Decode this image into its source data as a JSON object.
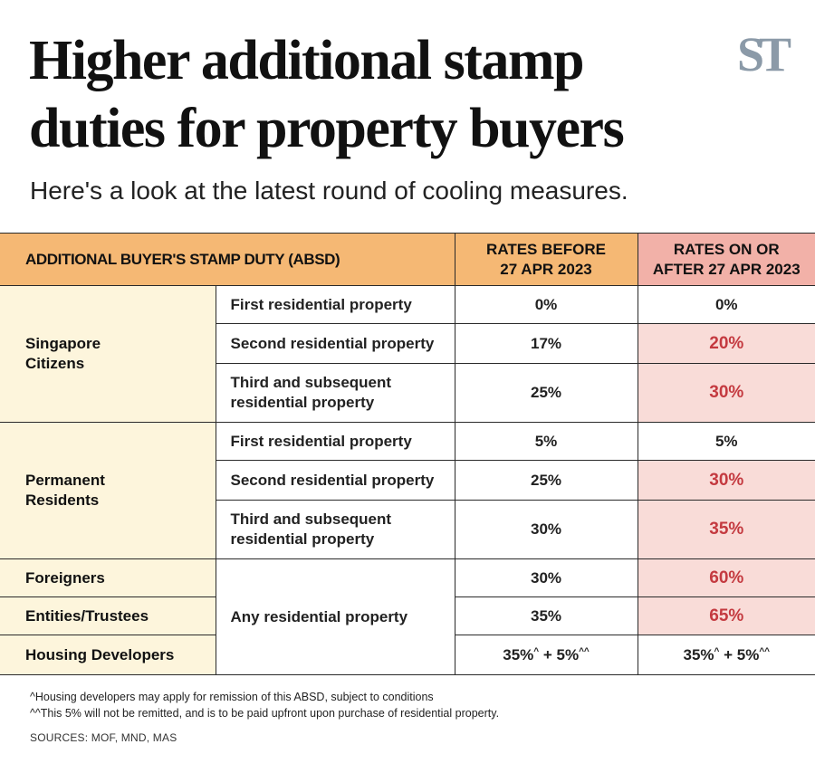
{
  "header": {
    "title": "Higher additional stamp duties for property buyers",
    "subtitle": "Here's a look at the latest round of cooling measures.",
    "logo_text": "ST",
    "logo_color": "#8b9aa8"
  },
  "table": {
    "headers": {
      "main": "ADDITIONAL BUYER'S STAMP DUTY (ABSD)",
      "before_line1": "RATES BEFORE",
      "before_line2": "27 APR 2023",
      "after_line1": "RATES ON OR",
      "after_line2": "AFTER 27 APR 2023"
    },
    "groups": {
      "citizens": {
        "name_line1": "Singapore",
        "name_line2": "Citizens",
        "rows": [
          {
            "property": "First residential property",
            "before": "0%",
            "after": "0%"
          },
          {
            "property": "Second residential property",
            "before": "17%",
            "after": "20%"
          },
          {
            "property_line1": "Third and subsequent",
            "property_line2": "residential property",
            "before": "25%",
            "after": "30%"
          }
        ]
      },
      "pr": {
        "name_line1": "Permanent",
        "name_line2": "Residents",
        "rows": [
          {
            "property": "First residential property",
            "before": "5%",
            "after": "5%"
          },
          {
            "property": "Second residential property",
            "before": "25%",
            "after": "30%"
          },
          {
            "property_line1": "Third and subsequent",
            "property_line2": "residential property",
            "before": "30%",
            "after": "35%"
          }
        ]
      },
      "others": {
        "property": "Any residential property",
        "rows": [
          {
            "name": "Foreigners",
            "before": "30%",
            "after": "60%"
          },
          {
            "name": "Entities/Trustees",
            "before": "35%",
            "after": "65%"
          },
          {
            "name": "Housing Developers",
            "before_a": "35%",
            "before_a_sup": "^",
            "before_b": " + 5%",
            "before_b_sup": "^^",
            "after_a": "35%",
            "after_a_sup": "^",
            "after_b": " + 5%",
            "after_b_sup": "^^"
          }
        ]
      }
    }
  },
  "footnotes": {
    "note1": "^Housing developers may apply for remission of this ABSD, subject to conditions",
    "note2": "^^This 5% will not be remitted, and is to be paid upfront upon purchase of residential property.",
    "sources": "SOURCES: MOF, MND, MAS"
  },
  "colors": {
    "header_orange": "#f5b874",
    "header_pink": "#f2b1a8",
    "group_cream": "#fdf5dc",
    "highlight_pink": "#f9dcd8",
    "highlight_red": "#c43a40"
  }
}
